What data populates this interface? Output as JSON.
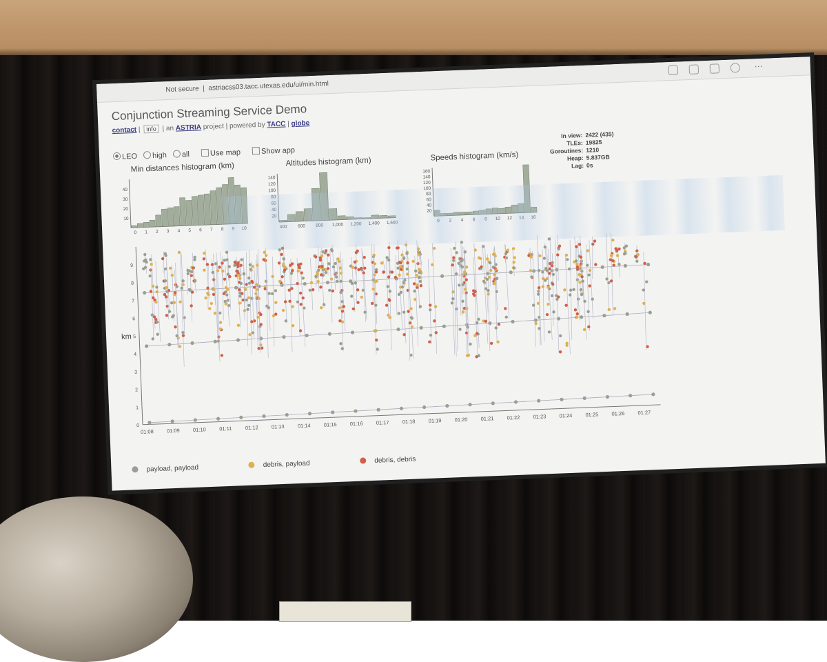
{
  "browser": {
    "security": "Not secure",
    "url": "astriacss03.tacc.utexas.edu/ui/min.html"
  },
  "app": {
    "title": "Conjunction Streaming Service Demo",
    "links": {
      "contact": "contact",
      "sep1": " | ",
      "info_button": "info",
      "sep2": " | an ",
      "astria": "ASTRIA",
      "mid": " project | powered by ",
      "tacc": "TACC",
      "sep3": " | ",
      "globe": "globe"
    },
    "controls": {
      "leo": "LEO",
      "high": "high",
      "all": "all",
      "use_map": "Use map",
      "show_app": "Show app",
      "selected_orbit": "LEO"
    },
    "stats": [
      {
        "label": "In view:",
        "value": "2422 (435)"
      },
      {
        "label": "TLEs:",
        "value": "19825"
      },
      {
        "label": "Goroutines:",
        "value": "1210"
      },
      {
        "label": "Heap:",
        "value": "5.837GB"
      },
      {
        "label": "Lag:",
        "value": "0s"
      }
    ],
    "colors": {
      "payload_payload": "#999f93",
      "debris_payload": "#e0b050",
      "debris_debris": "#d0604a",
      "bar": "#a3ad9c",
      "bar_stroke": "#6f7a6a"
    }
  },
  "chart_data": [
    {
      "type": "bar",
      "title": "Min distances histogram (km)",
      "x_ticks": [
        "0",
        "1",
        "2",
        "3",
        "4",
        "5",
        "6",
        "7",
        "8",
        "9",
        "10"
      ],
      "y_ticks": [
        "10",
        "20",
        "30",
        "40"
      ],
      "ylim": [
        0,
        50
      ],
      "bin_start": 0,
      "bin_width": 0.5,
      "values": [
        2,
        4,
        5,
        7,
        12,
        18,
        19,
        20,
        29,
        26,
        30,
        31,
        32,
        35,
        38,
        41,
        48,
        40,
        37
      ]
    },
    {
      "type": "bar",
      "title": "Altitudes histogram (km)",
      "x_ticks": [
        "400",
        "600",
        "800",
        "1,000",
        "1,200",
        "1,400",
        "1,600"
      ],
      "y_ticks": [
        "20",
        "40",
        "60",
        "80",
        "100",
        "120",
        "140"
      ],
      "ylim": [
        0,
        150
      ],
      "bin_start": 300,
      "bin_width": 100,
      "values": [
        5,
        22,
        30,
        38,
        100,
        148,
        35,
        12,
        8,
        4,
        3,
        10,
        8,
        6
      ]
    },
    {
      "type": "bar",
      "title": "Speeds histogram (km/s)",
      "x_ticks": [
        "0",
        "2",
        "4",
        "6",
        "8",
        "10",
        "12",
        "14",
        "16"
      ],
      "y_ticks": [
        "20",
        "40",
        "60",
        "80",
        "100",
        "120",
        "140",
        "160"
      ],
      "ylim": [
        0,
        170
      ],
      "bin_start": 0,
      "bin_width": 1,
      "values": [
        20,
        8,
        8,
        10,
        10,
        10,
        12,
        14,
        18,
        20,
        18,
        22,
        28,
        32,
        168,
        18
      ]
    },
    {
      "type": "scatter",
      "ylabel": "km",
      "y_ticks": [
        "0",
        "1",
        "2",
        "3",
        "4",
        "5",
        "6",
        "7",
        "8",
        "9"
      ],
      "ylim": [
        0,
        10
      ],
      "x_ticks": [
        "01:08",
        "01:09",
        "01:10",
        "01:11",
        "01:12",
        "01:13",
        "01:14",
        "01:15",
        "01:16",
        "01:17",
        "01:18",
        "01:19",
        "01:20",
        "01:21",
        "01:22",
        "01:23",
        "01:24",
        "01:25",
        "01:26",
        "01:27"
      ],
      "legend": [
        "payload, payload",
        "debris, payload",
        "debris, debris"
      ],
      "legend_placement": "bottom"
    }
  ]
}
